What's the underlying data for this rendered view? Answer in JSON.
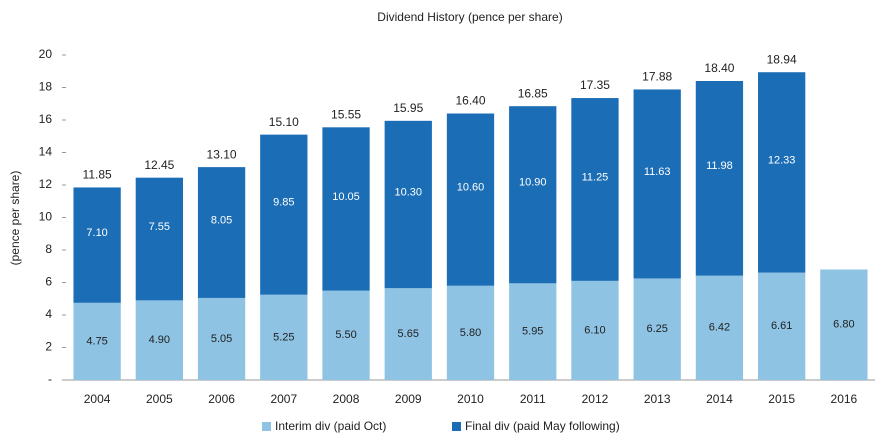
{
  "chart_data": {
    "type": "stacked_bar",
    "title": "Dividend History (pence per share)",
    "y_label": "(pence per share)",
    "categories": [
      "2004",
      "2005",
      "2006",
      "2007",
      "2008",
      "2009",
      "2010",
      "2011",
      "2012",
      "2013",
      "2014",
      "2015",
      "2016"
    ],
    "series": [
      {
        "name": "Interim div (paid Oct)",
        "color": "#8ec3e4",
        "values": [
          4.75,
          4.9,
          5.05,
          5.25,
          5.5,
          5.65,
          5.8,
          5.95,
          6.1,
          6.25,
          6.42,
          6.61,
          6.8
        ],
        "value_labels": [
          "4.75",
          "4.90",
          "5.05",
          "5.25",
          "5.50",
          "5.65",
          "5.80",
          "5.95",
          "6.10",
          "6.25",
          "6.42",
          "6.61",
          "6.80"
        ]
      },
      {
        "name": "Final div (paid May following)",
        "color": "#1b6db6",
        "values": [
          7.1,
          7.55,
          8.05,
          9.85,
          10.05,
          10.3,
          10.6,
          10.9,
          11.25,
          11.63,
          11.98,
          12.33,
          null
        ],
        "value_labels": [
          "7.10",
          "7.55",
          "8.05",
          "9.85",
          "10.05",
          "10.30",
          "10.60",
          "10.90",
          "11.25",
          "11.63",
          "11.98",
          "12.33",
          null
        ]
      }
    ],
    "totals": [
      11.85,
      12.45,
      13.1,
      15.1,
      15.55,
      15.95,
      16.4,
      16.85,
      17.35,
      17.88,
      18.4,
      18.94,
      null
    ],
    "total_labels": [
      "11.85",
      "12.45",
      "13.10",
      "15.10",
      "15.55",
      "15.95",
      "16.40",
      "16.85",
      "17.35",
      "17.88",
      "18.40",
      "18.94",
      null
    ],
    "ylim": [
      0,
      20
    ],
    "yticks": [
      {
        "value": 0,
        "label": "-"
      },
      2,
      4,
      6,
      8,
      10,
      12,
      14,
      16,
      18,
      20
    ],
    "grid": false,
    "legend": "bottom"
  }
}
